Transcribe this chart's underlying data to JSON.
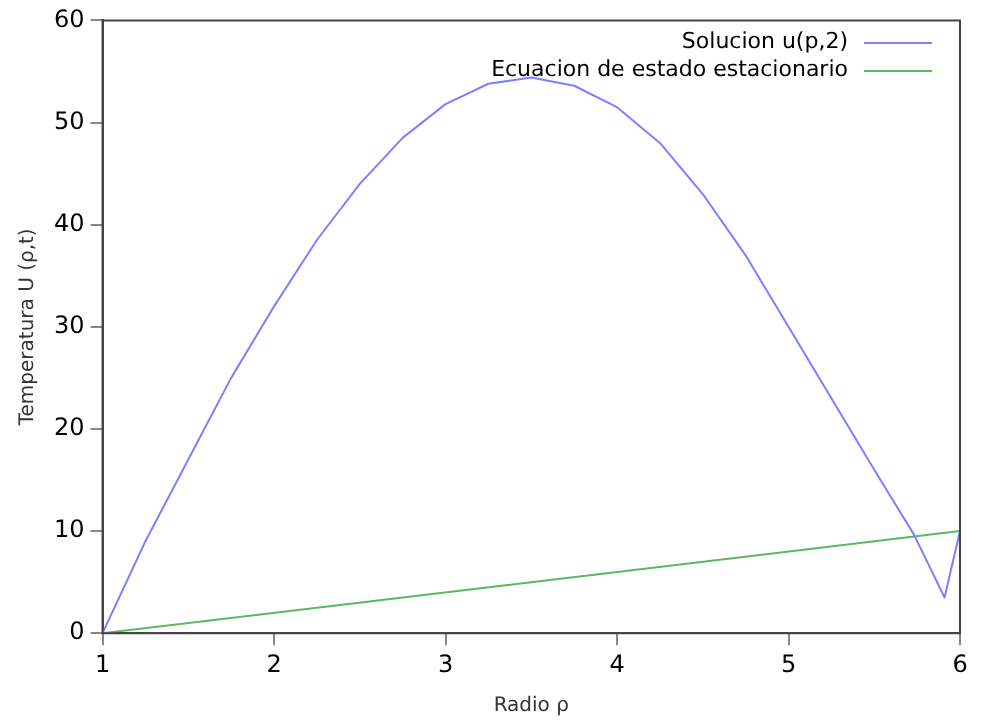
{
  "chart_data": {
    "type": "line",
    "xlabel": "Radio ρ",
    "ylabel": "Temperatura U (ρ,t)",
    "xlim": [
      1,
      6
    ],
    "xticks": [
      1,
      2,
      3,
      4,
      5,
      6
    ],
    "ylim": [
      0,
      60
    ],
    "yticks": [
      0,
      10,
      20,
      30,
      40,
      50,
      60
    ],
    "grid": false,
    "legend": "top right",
    "marker": "none",
    "line_style": "solid",
    "series": [
      {
        "name": "Solucion u(p,2)",
        "color": "#7f7fff",
        "x": [
          1,
          1.25,
          1.5,
          1.75,
          2,
          2.25,
          2.5,
          2.75,
          3,
          3.25,
          3.5,
          3.75,
          4,
          4.25,
          4.5,
          4.75,
          5,
          5.25,
          5.5,
          5.73,
          5.91,
          6
        ],
        "values": [
          0,
          9,
          17,
          25,
          32,
          38.5,
          44,
          48.5,
          51.8,
          53.8,
          54.4,
          53.6,
          51.5,
          48,
          43,
          37,
          30,
          23,
          16,
          9.7,
          3.5,
          10
        ]
      },
      {
        "name": "Ecuacion de estado estacionario",
        "color": "#5cb85c",
        "x": [
          1,
          6
        ],
        "values": [
          0,
          10
        ]
      }
    ]
  }
}
